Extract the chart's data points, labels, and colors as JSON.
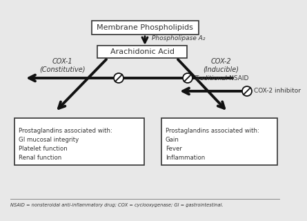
{
  "bg_color": "#e8e8e8",
  "box_color": "#ffffff",
  "box_edge": "#333333",
  "text_color": "#333333",
  "arrow_color": "#111111",
  "title": "Membrane Phospholipids",
  "phospholipase": "Phospholipase A₂",
  "arachidonic": "Arachidonic Acid",
  "cox1_label": "COX-1\n(Constitutive)",
  "cox2_label": "COX-2\n(Inducible)",
  "trad_nsaid": "Traditional NSAID",
  "cox2_inhib": "COX-2 inhibitor",
  "left_box_lines": [
    "Prostaglandins associated with:",
    "GI mucosal integrity",
    "Platelet function",
    "Renal function"
  ],
  "right_box_lines": [
    "Prostaglandins associated with:",
    "Gain",
    "Fever",
    "Inflammation"
  ],
  "footnote": "NSAID = nonsteroidal anti-inflammatory drug; COX = cyclooxygenase; GI = gastrointestinal."
}
